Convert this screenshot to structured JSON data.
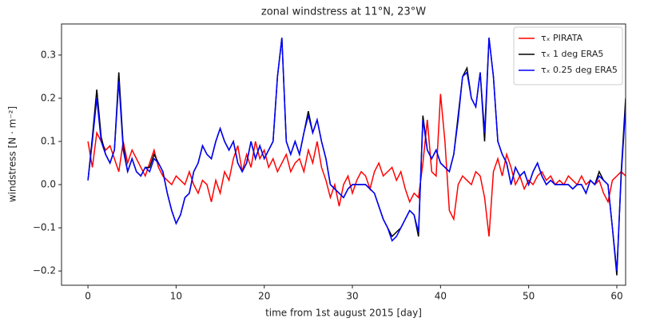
{
  "chart_data": {
    "type": "line",
    "title": "zonal windstress at 11°N, 23°W",
    "x_label": "time from 1st august 2015 [day]",
    "y_label": "windstress [N · m⁻²]",
    "xlim": [
      -3,
      61
    ],
    "ylim": [
      -0.233,
      0.372
    ],
    "xticks": [
      0,
      10,
      20,
      30,
      40,
      50,
      60
    ],
    "yticks": [
      {
        "value": -0.2,
        "label": "−0.2"
      },
      {
        "value": -0.1,
        "label": "−0.1"
      },
      {
        "value": 0,
        "label": "0.0"
      },
      0.1,
      0.2,
      0.3
    ],
    "legend": "upper right",
    "x": [
      0,
      0.5,
      1,
      1.5,
      2,
      2.5,
      3,
      3.5,
      4,
      4.5,
      5,
      5.5,
      6,
      6.5,
      7,
      7.5,
      8,
      8.5,
      9,
      9.5,
      10,
      10.5,
      11,
      11.5,
      12,
      12.5,
      13,
      13.5,
      14,
      14.5,
      15,
      15.5,
      16,
      16.5,
      17,
      17.5,
      18,
      18.5,
      19,
      19.5,
      20,
      20.5,
      21,
      21.5,
      22,
      22.5,
      23,
      23.5,
      24,
      24.5,
      25,
      25.5,
      26,
      26.5,
      27,
      27.5,
      28,
      28.5,
      29,
      29.5,
      30,
      30.5,
      31,
      31.5,
      32,
      32.5,
      33,
      33.5,
      34,
      34.5,
      35,
      35.5,
      36,
      36.5,
      37,
      37.5,
      38,
      38.5,
      39,
      39.5,
      40,
      40.5,
      41,
      41.5,
      42,
      42.5,
      43,
      43.5,
      44,
      44.5,
      45,
      45.5,
      46,
      46.5,
      47,
      47.5,
      48,
      48.5,
      49,
      49.5,
      50,
      50.5,
      51,
      51.5,
      52,
      52.5,
      53,
      53.5,
      54,
      54.5,
      55,
      55.5,
      56,
      56.5,
      57,
      57.5,
      58,
      58.5,
      59,
      59.5,
      60,
      60.5,
      61
    ],
    "series": [
      {
        "name": "τₓ PIRATA",
        "color": "#ff0000",
        "values": [
          0.1,
          0.04,
          0.12,
          0.1,
          0.08,
          0.09,
          0.06,
          0.03,
          0.1,
          0.05,
          0.08,
          0.06,
          0.04,
          0.02,
          0.05,
          0.08,
          0.04,
          0.02,
          0.01,
          0.0,
          0.02,
          0.01,
          0.0,
          0.03,
          0.0,
          -0.02,
          0.01,
          0.0,
          -0.04,
          0.01,
          -0.02,
          0.03,
          0.01,
          0.06,
          0.09,
          0.03,
          0.07,
          0.04,
          0.1,
          0.06,
          0.08,
          0.04,
          0.06,
          0.03,
          0.05,
          0.07,
          0.03,
          0.05,
          0.06,
          0.03,
          0.08,
          0.05,
          0.1,
          0.04,
          0.01,
          -0.03,
          0.0,
          -0.05,
          0.0,
          0.02,
          -0.02,
          0.01,
          0.03,
          0.02,
          -0.01,
          0.03,
          0.05,
          0.02,
          0.03,
          0.04,
          0.01,
          0.03,
          -0.01,
          -0.04,
          -0.02,
          -0.03,
          0.05,
          0.15,
          0.03,
          0.02,
          0.21,
          0.1,
          -0.06,
          -0.08,
          0.0,
          0.02,
          0.01,
          0.0,
          0.03,
          0.02,
          -0.03,
          -0.12,
          0.03,
          0.06,
          0.02,
          0.07,
          0.04,
          0.0,
          0.02,
          -0.01,
          0.01,
          0.0,
          0.02,
          0.03,
          0.01,
          0.02,
          0.0,
          0.01,
          0.0,
          0.02,
          0.01,
          0.0,
          0.02,
          0.0,
          0.01,
          0.0,
          0.01,
          -0.02,
          -0.04,
          0.01,
          0.02,
          0.03,
          0.02
        ]
      },
      {
        "name": "τₓ 1 deg ERA5",
        "color": "#000000",
        "values": [
          0.01,
          0.11,
          0.22,
          0.11,
          0.07,
          0.05,
          0.08,
          0.26,
          0.09,
          0.03,
          0.06,
          0.03,
          0.02,
          0.04,
          0.04,
          0.07,
          0.05,
          0.03,
          -0.02,
          -0.06,
          -0.09,
          -0.07,
          -0.03,
          -0.02,
          0.03,
          0.05,
          0.09,
          0.07,
          0.06,
          0.1,
          0.13,
          0.1,
          0.08,
          0.1,
          0.05,
          0.03,
          0.05,
          0.1,
          0.06,
          0.09,
          0.06,
          0.08,
          0.1,
          0.25,
          0.34,
          0.1,
          0.07,
          0.1,
          0.07,
          0.12,
          0.17,
          0.12,
          0.15,
          0.1,
          0.06,
          0.0,
          -0.01,
          -0.02,
          -0.03,
          -0.01,
          0.0,
          0.0,
          0.0,
          0.0,
          -0.01,
          -0.02,
          -0.05,
          -0.08,
          -0.1,
          -0.12,
          -0.11,
          -0.1,
          -0.08,
          -0.06,
          -0.07,
          -0.12,
          0.16,
          0.08,
          0.06,
          0.08,
          0.05,
          0.04,
          0.03,
          0.07,
          0.16,
          0.25,
          0.27,
          0.2,
          0.18,
          0.26,
          0.1,
          0.34,
          0.25,
          0.1,
          0.07,
          0.05,
          0.0,
          0.04,
          0.02,
          0.03,
          0.0,
          0.03,
          0.05,
          0.02,
          0.0,
          0.01,
          0.0,
          0.0,
          0.0,
          0.0,
          -0.01,
          0.0,
          0.0,
          -0.02,
          0.01,
          0.0,
          0.03,
          0.01,
          0.0,
          -0.1,
          -0.21,
          0.03,
          0.2
        ]
      },
      {
        "name": "τₓ 0.25 deg ERA5",
        "color": "#0000ff",
        "values": [
          0.01,
          0.1,
          0.2,
          0.1,
          0.07,
          0.05,
          0.08,
          0.24,
          0.08,
          0.03,
          0.06,
          0.03,
          0.02,
          0.04,
          0.03,
          0.06,
          0.05,
          0.03,
          -0.02,
          -0.06,
          -0.09,
          -0.07,
          -0.03,
          -0.02,
          0.03,
          0.05,
          0.09,
          0.07,
          0.06,
          0.1,
          0.13,
          0.1,
          0.08,
          0.1,
          0.05,
          0.03,
          0.05,
          0.1,
          0.06,
          0.09,
          0.06,
          0.08,
          0.1,
          0.25,
          0.34,
          0.1,
          0.07,
          0.1,
          0.07,
          0.12,
          0.16,
          0.12,
          0.15,
          0.1,
          0.06,
          0.0,
          -0.01,
          -0.02,
          -0.03,
          -0.01,
          0.0,
          0.0,
          0.0,
          0.0,
          -0.01,
          -0.02,
          -0.05,
          -0.08,
          -0.1,
          -0.13,
          -0.12,
          -0.1,
          -0.08,
          -0.06,
          -0.07,
          -0.11,
          0.15,
          0.08,
          0.06,
          0.08,
          0.05,
          0.04,
          0.03,
          0.07,
          0.15,
          0.25,
          0.26,
          0.2,
          0.18,
          0.26,
          0.12,
          0.34,
          0.25,
          0.1,
          0.07,
          0.05,
          0.0,
          0.04,
          0.02,
          0.03,
          0.0,
          0.03,
          0.05,
          0.02,
          0.0,
          0.01,
          0.0,
          0.0,
          0.0,
          0.0,
          -0.01,
          0.0,
          0.0,
          -0.02,
          0.01,
          0.0,
          0.02,
          0.01,
          0.0,
          -0.1,
          -0.2,
          0.02,
          0.18
        ]
      }
    ]
  }
}
